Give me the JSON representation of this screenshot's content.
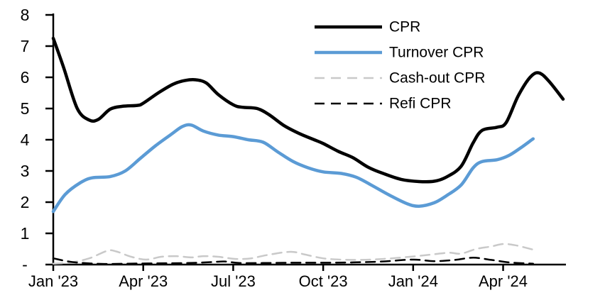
{
  "page": {
    "background": "#ffffff"
  },
  "chart_data": {
    "type": "line",
    "title": "",
    "xlabel": "",
    "ylabel": "",
    "grid": false,
    "legend_position": "top-center",
    "x_unit": "months since Jan 2023",
    "xlim": [
      0,
      17
    ],
    "ylim": [
      0,
      8
    ],
    "y_tick_step": 1,
    "y_tick_labels": [
      "-",
      "1",
      "2",
      "3",
      "4",
      "5",
      "6",
      "7",
      "8"
    ],
    "x_tick_positions": [
      0,
      3,
      6,
      9,
      12,
      15
    ],
    "x_tick_labels": [
      "Jan '23",
      "Apr '23",
      "Jul '23",
      "Oct '23",
      "Jan '24",
      "Apr '24"
    ],
    "axis_color": "#000000",
    "series": [
      {
        "name": "CPR",
        "color": "#000000",
        "style": "solid",
        "width": 4.5,
        "points": [
          [
            0,
            7.25
          ],
          [
            0.35,
            6.3
          ],
          [
            0.8,
            5.0
          ],
          [
            1.2,
            4.63
          ],
          [
            1.5,
            4.65
          ],
          [
            1.9,
            4.98
          ],
          [
            2.3,
            5.07
          ],
          [
            2.8,
            5.1
          ],
          [
            3.0,
            5.17
          ],
          [
            3.5,
            5.5
          ],
          [
            4.0,
            5.78
          ],
          [
            4.4,
            5.9
          ],
          [
            4.75,
            5.92
          ],
          [
            5.1,
            5.82
          ],
          [
            5.5,
            5.45
          ],
          [
            6.0,
            5.12
          ],
          [
            6.3,
            5.04
          ],
          [
            6.8,
            5.0
          ],
          [
            7.2,
            4.8
          ],
          [
            7.7,
            4.45
          ],
          [
            8.2,
            4.2
          ],
          [
            8.7,
            4.0
          ],
          [
            9.0,
            3.88
          ],
          [
            9.5,
            3.63
          ],
          [
            10.0,
            3.42
          ],
          [
            10.5,
            3.12
          ],
          [
            11.0,
            2.92
          ],
          [
            11.6,
            2.73
          ],
          [
            12.2,
            2.66
          ],
          [
            12.7,
            2.67
          ],
          [
            13.1,
            2.8
          ],
          [
            13.6,
            3.15
          ],
          [
            14.0,
            3.9
          ],
          [
            14.3,
            4.3
          ],
          [
            14.8,
            4.4
          ],
          [
            15.1,
            4.55
          ],
          [
            15.5,
            5.4
          ],
          [
            15.9,
            6.0
          ],
          [
            16.2,
            6.14
          ],
          [
            16.55,
            5.85
          ],
          [
            17.0,
            5.3
          ]
        ]
      },
      {
        "name": "Turnover CPR",
        "color": "#5B9BD5",
        "style": "solid",
        "width": 4.5,
        "points": [
          [
            0,
            1.7
          ],
          [
            0.4,
            2.25
          ],
          [
            0.9,
            2.62
          ],
          [
            1.3,
            2.78
          ],
          [
            1.9,
            2.82
          ],
          [
            2.4,
            3.0
          ],
          [
            2.9,
            3.4
          ],
          [
            3.4,
            3.8
          ],
          [
            3.9,
            4.15
          ],
          [
            4.3,
            4.42
          ],
          [
            4.6,
            4.47
          ],
          [
            5.0,
            4.28
          ],
          [
            5.5,
            4.15
          ],
          [
            6.0,
            4.1
          ],
          [
            6.5,
            4.0
          ],
          [
            7.0,
            3.92
          ],
          [
            7.5,
            3.6
          ],
          [
            8.0,
            3.3
          ],
          [
            8.5,
            3.1
          ],
          [
            9.0,
            2.97
          ],
          [
            9.6,
            2.92
          ],
          [
            10.1,
            2.8
          ],
          [
            10.6,
            2.55
          ],
          [
            11.2,
            2.23
          ],
          [
            11.8,
            1.95
          ],
          [
            12.2,
            1.87
          ],
          [
            12.7,
            1.98
          ],
          [
            13.1,
            2.2
          ],
          [
            13.6,
            2.55
          ],
          [
            14.0,
            3.1
          ],
          [
            14.3,
            3.3
          ],
          [
            14.8,
            3.36
          ],
          [
            15.2,
            3.5
          ],
          [
            15.6,
            3.75
          ],
          [
            16.0,
            4.03
          ]
        ]
      },
      {
        "name": "Cash-out CPR",
        "color": "#C9C9C9",
        "style": "dashed",
        "width": 2.5,
        "points": [
          [
            0,
            0.03
          ],
          [
            0.6,
            0.07
          ],
          [
            1.2,
            0.2
          ],
          [
            1.8,
            0.44
          ],
          [
            2.1,
            0.42
          ],
          [
            2.6,
            0.25
          ],
          [
            3.1,
            0.16
          ],
          [
            3.6,
            0.25
          ],
          [
            4.1,
            0.27
          ],
          [
            4.6,
            0.23
          ],
          [
            5.0,
            0.27
          ],
          [
            5.5,
            0.25
          ],
          [
            6.1,
            0.18
          ],
          [
            6.6,
            0.2
          ],
          [
            7.1,
            0.3
          ],
          [
            7.9,
            0.41
          ],
          [
            8.4,
            0.32
          ],
          [
            9.0,
            0.2
          ],
          [
            9.6,
            0.16
          ],
          [
            10.2,
            0.15
          ],
          [
            11.0,
            0.18
          ],
          [
            12.0,
            0.26
          ],
          [
            12.6,
            0.32
          ],
          [
            13.2,
            0.38
          ],
          [
            13.6,
            0.35
          ],
          [
            14.1,
            0.5
          ],
          [
            14.6,
            0.58
          ],
          [
            15.0,
            0.66
          ],
          [
            15.4,
            0.62
          ],
          [
            16.0,
            0.48
          ]
        ]
      },
      {
        "name": "Refi CPR",
        "color": "#000000",
        "style": "dashed",
        "width": 2.5,
        "points": [
          [
            0,
            0.2
          ],
          [
            0.5,
            0.1
          ],
          [
            1.0,
            0.05
          ],
          [
            1.7,
            0.02
          ],
          [
            2.5,
            0.03
          ],
          [
            3.5,
            0.04
          ],
          [
            4.5,
            0.05
          ],
          [
            5.3,
            0.08
          ],
          [
            5.7,
            0.1
          ],
          [
            6.2,
            0.05
          ],
          [
            7.0,
            0.05
          ],
          [
            8.0,
            0.06
          ],
          [
            9.0,
            0.06
          ],
          [
            10.0,
            0.07
          ],
          [
            11.0,
            0.1
          ],
          [
            12.0,
            0.16
          ],
          [
            12.7,
            0.11
          ],
          [
            13.4,
            0.15
          ],
          [
            14.0,
            0.22
          ],
          [
            14.6,
            0.15
          ],
          [
            15.2,
            0.07
          ],
          [
            15.7,
            0.04
          ],
          [
            16.0,
            0.03
          ]
        ]
      }
    ],
    "legend": [
      {
        "label": "CPR"
      },
      {
        "label": "Turnover CPR"
      },
      {
        "label": "Cash-out CPR"
      },
      {
        "label": "Refi CPR"
      }
    ]
  }
}
